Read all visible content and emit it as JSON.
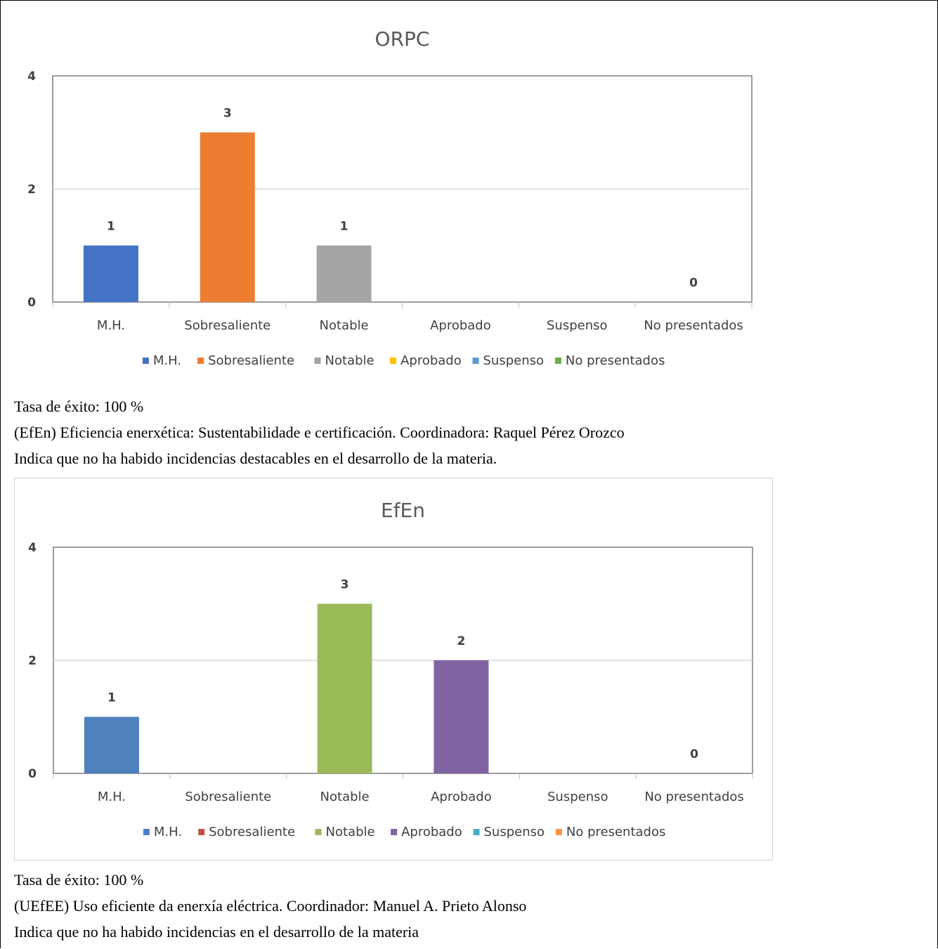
{
  "chart_data": [
    {
      "type": "bar",
      "title": "ORPC",
      "categories": [
        "M.H.",
        "Sobresaliente",
        "Notable",
        "Aprobado",
        "Suspenso",
        "No presentados"
      ],
      "values": [
        1,
        3,
        1,
        null,
        null,
        0
      ],
      "colors": [
        "#4472c4",
        "#ed7d31",
        "#a5a5a5",
        "#ffc000",
        "#5b9bd5",
        "#70ad47"
      ],
      "legend": [
        "M.H.",
        "Sobresaliente",
        "Notable",
        "Aprobado",
        "Suspenso",
        "No presentados"
      ],
      "yticks": [
        "0",
        "2",
        "4"
      ],
      "ylim": [
        0,
        4
      ],
      "grid": true,
      "legend_position": "bottom"
    },
    {
      "type": "bar",
      "title": "EfEn",
      "categories": [
        "M.H.",
        "Sobresaliente",
        "Notable",
        "Aprobado",
        "Suspenso",
        "No presentados"
      ],
      "values": [
        1,
        null,
        3,
        2,
        null,
        0
      ],
      "colors": [
        "#4f81bd",
        "#c0504d",
        "#9bbb59",
        "#8064a2",
        "#4bacc6",
        "#f79646"
      ],
      "legend": [
        "M.H.",
        "Sobresaliente",
        "Notable",
        "Aprobado",
        "Suspenso",
        "No presentados"
      ],
      "yticks": [
        "0",
        "2",
        "4"
      ],
      "ylim": [
        0,
        4
      ],
      "grid": true,
      "legend_position": "bottom"
    }
  ],
  "text": {
    "rate_1": "Tasa de éxito: 100 %",
    "efen_heading": "(EfEn) Eficiencia enerxética: Sustentabilidade e certificación. Coordinadora: Raquel Pérez Orozco",
    "efen_note": "Indica que no ha habido incidencias destacables en el desarrollo de la materia.",
    "rate_2": "Tasa de éxito: 100 %",
    "uefee_heading": "(UEfEE) Uso eficiente da enerxía eléctrica. Coordinador: Manuel A. Prieto Alonso",
    "uefee_note": "Indica que no ha habido incidencias en el desarrollo de la materia"
  }
}
